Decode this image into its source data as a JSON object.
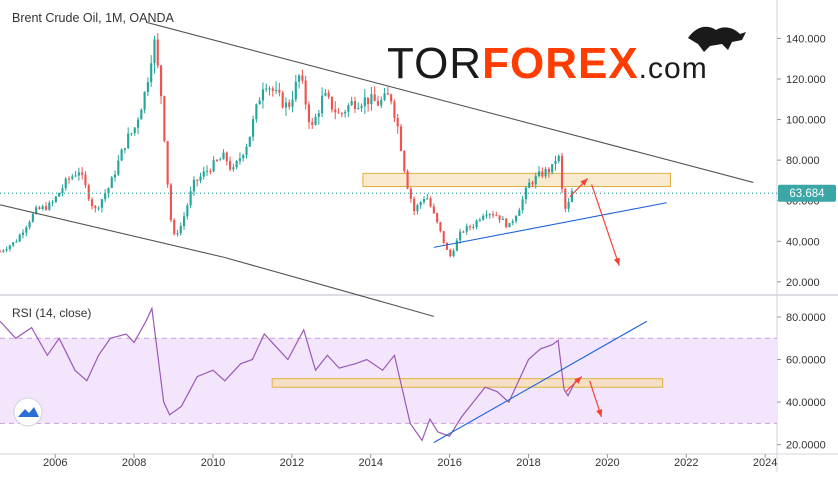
{
  "chart_data": [
    {
      "type": "candlestick",
      "title": "Brent Crude Oil, 1M, OANDA",
      "timeframe": "1M",
      "source": "OANDA",
      "last_price": "63.684",
      "last_price_value": 63.684,
      "ylim": [
        15,
        155
      ],
      "y_ticks": [
        20,
        40,
        60,
        80,
        100,
        120,
        140
      ],
      "y_tick_labels": [
        "20.000",
        "40.000",
        "60.000",
        "80.000",
        "100.000",
        "120.000",
        "140.000"
      ],
      "xlim": [
        2004.6,
        2024.3
      ],
      "x_ticks": [
        2006,
        2008,
        2010,
        2012,
        2014,
        2016,
        2018,
        2020,
        2022,
        2024
      ],
      "x_tick_labels": [
        "2006",
        "2008",
        "2010",
        "2012",
        "2014",
        "2016",
        "2018",
        "2020",
        "2022",
        "2024"
      ],
      "price_path": [
        [
          2004.6,
          35
        ],
        [
          2005.0,
          40
        ],
        [
          2005.5,
          55
        ],
        [
          2005.9,
          58
        ],
        [
          2006.3,
          70
        ],
        [
          2006.6,
          75
        ],
        [
          2007.0,
          55
        ],
        [
          2007.4,
          68
        ],
        [
          2007.8,
          90
        ],
        [
          2008.0,
          95
        ],
        [
          2008.3,
          115
        ],
        [
          2008.5,
          140
        ],
        [
          2008.7,
          110
        ],
        [
          2008.9,
          55
        ],
        [
          2009.0,
          42
        ],
        [
          2009.2,
          48
        ],
        [
          2009.5,
          68
        ],
        [
          2009.9,
          76
        ],
        [
          2010.3,
          82
        ],
        [
          2010.5,
          74
        ],
        [
          2010.9,
          90
        ],
        [
          2011.3,
          120
        ],
        [
          2011.6,
          112
        ],
        [
          2011.9,
          106
        ],
        [
          2012.2,
          122
        ],
        [
          2012.5,
          95
        ],
        [
          2012.8,
          112
        ],
        [
          2013.2,
          102
        ],
        [
          2013.5,
          108
        ],
        [
          2013.9,
          110
        ],
        [
          2014.2,
          108
        ],
        [
          2014.5,
          112
        ],
        [
          2014.7,
          95
        ],
        [
          2014.9,
          70
        ],
        [
          2015.1,
          55
        ],
        [
          2015.4,
          63
        ],
        [
          2015.7,
          48
        ],
        [
          2015.9,
          37
        ],
        [
          2016.0,
          32
        ],
        [
          2016.3,
          45
        ],
        [
          2016.6,
          48
        ],
        [
          2016.9,
          55
        ],
        [
          2017.2,
          53
        ],
        [
          2017.5,
          47
        ],
        [
          2017.8,
          58
        ],
        [
          2018.0,
          68
        ],
        [
          2018.3,
          73
        ],
        [
          2018.6,
          76
        ],
        [
          2018.75,
          84
        ],
        [
          2018.85,
          65
        ],
        [
          2018.95,
          54
        ],
        [
          2019.1,
          64
        ]
      ],
      "zones": [
        {
          "x": [
            2013.8,
            2021.6
          ],
          "y": [
            67,
            73.5
          ]
        }
      ],
      "channel_lines": [
        {
          "from": [
            2008.3,
            148
          ],
          "to": [
            2023.7,
            69
          ]
        },
        {
          "from": [
            2004.6,
            58
          ],
          "to": [
            2010.3,
            32
          ]
        },
        {
          "from": [
            2010.3,
            32
          ],
          "to": [
            2015.6,
            3
          ]
        },
        {
          "from": [
            2015.6,
            37
          ],
          "to": [
            2021.5,
            59
          ]
        }
      ],
      "arrows": [
        {
          "from": [
            2019.05,
            62
          ],
          "to": [
            2019.5,
            71
          ]
        },
        {
          "from": [
            2019.6,
            68
          ],
          "to": [
            2020.3,
            28
          ]
        }
      ]
    },
    {
      "type": "line",
      "title": "RSI (14, close)",
      "ylim": [
        17,
        88
      ],
      "y_ticks": [
        20,
        40,
        60,
        80
      ],
      "y_tick_labels": [
        "20.0000",
        "40.0000",
        "60.0000",
        "80.0000"
      ],
      "levels": [
        30,
        70
      ],
      "series": [
        {
          "name": "RSI",
          "color": "#9b59b6",
          "points": [
            [
              2004.6,
              78
            ],
            [
              2005.0,
              70
            ],
            [
              2005.4,
              75
            ],
            [
              2005.8,
              62
            ],
            [
              2006.1,
              70
            ],
            [
              2006.5,
              55
            ],
            [
              2006.8,
              50
            ],
            [
              2007.1,
              62
            ],
            [
              2007.4,
              70
            ],
            [
              2007.8,
              72
            ],
            [
              2008.0,
              68
            ],
            [
              2008.3,
              78
            ],
            [
              2008.45,
              84
            ],
            [
              2008.6,
              62
            ],
            [
              2008.75,
              40
            ],
            [
              2008.9,
              34
            ],
            [
              2009.2,
              38
            ],
            [
              2009.6,
              52
            ],
            [
              2010.0,
              55
            ],
            [
              2010.3,
              50
            ],
            [
              2010.7,
              58
            ],
            [
              2011.0,
              60
            ],
            [
              2011.3,
              72
            ],
            [
              2011.6,
              66
            ],
            [
              2011.9,
              60
            ],
            [
              2012.3,
              74
            ],
            [
              2012.6,
              55
            ],
            [
              2012.9,
              62
            ],
            [
              2013.2,
              56
            ],
            [
              2013.6,
              58
            ],
            [
              2013.9,
              60
            ],
            [
              2014.3,
              55
            ],
            [
              2014.6,
              62
            ],
            [
              2014.8,
              46
            ],
            [
              2015.0,
              30
            ],
            [
              2015.3,
              22
            ],
            [
              2015.5,
              32
            ],
            [
              2015.7,
              26
            ],
            [
              2016.0,
              24
            ],
            [
              2016.3,
              33
            ],
            [
              2016.6,
              40
            ],
            [
              2016.9,
              47
            ],
            [
              2017.2,
              45
            ],
            [
              2017.5,
              40
            ],
            [
              2017.8,
              52
            ],
            [
              2018.0,
              60
            ],
            [
              2018.3,
              65
            ],
            [
              2018.6,
              67
            ],
            [
              2018.75,
              69
            ],
            [
              2018.9,
              46
            ],
            [
              2019.0,
              43
            ],
            [
              2019.2,
              50
            ]
          ]
        }
      ],
      "zones": [
        {
          "x": [
            2011.5,
            2021.4
          ],
          "y": [
            47,
            51
          ]
        }
      ],
      "trend_lines": [
        {
          "from": [
            2015.6,
            21
          ],
          "to": [
            2021.0,
            78
          ]
        }
      ],
      "arrows": [
        {
          "from": [
            2018.95,
            45
          ],
          "to": [
            2019.35,
            52
          ]
        },
        {
          "from": [
            2019.55,
            50
          ],
          "to": [
            2019.85,
            33
          ]
        }
      ]
    }
  ],
  "logo": {
    "text_prefix": "TOR",
    "text_main": "FOREX",
    "text_suffix": ".com",
    "prefix_color": "#1a1a1a",
    "main_color": "#ff3d00",
    "suffix_color": "#1a1a1a"
  },
  "colors": {
    "up_candle": "#26a69a",
    "down_candle": "#ef5350",
    "zone_fill": "#f5deb3",
    "zone_stroke": "#e0b040",
    "channel_line": "#555555",
    "support_line": "#1e64d8",
    "arrow": "#f44336",
    "price_line": "#3aa6a6",
    "price_badge": "#3aa6a6",
    "rsi_band": "#f3e5fb",
    "rsi_level": "#c9a0dc",
    "axis_text": "#333333",
    "border": "#d0d4dc"
  }
}
